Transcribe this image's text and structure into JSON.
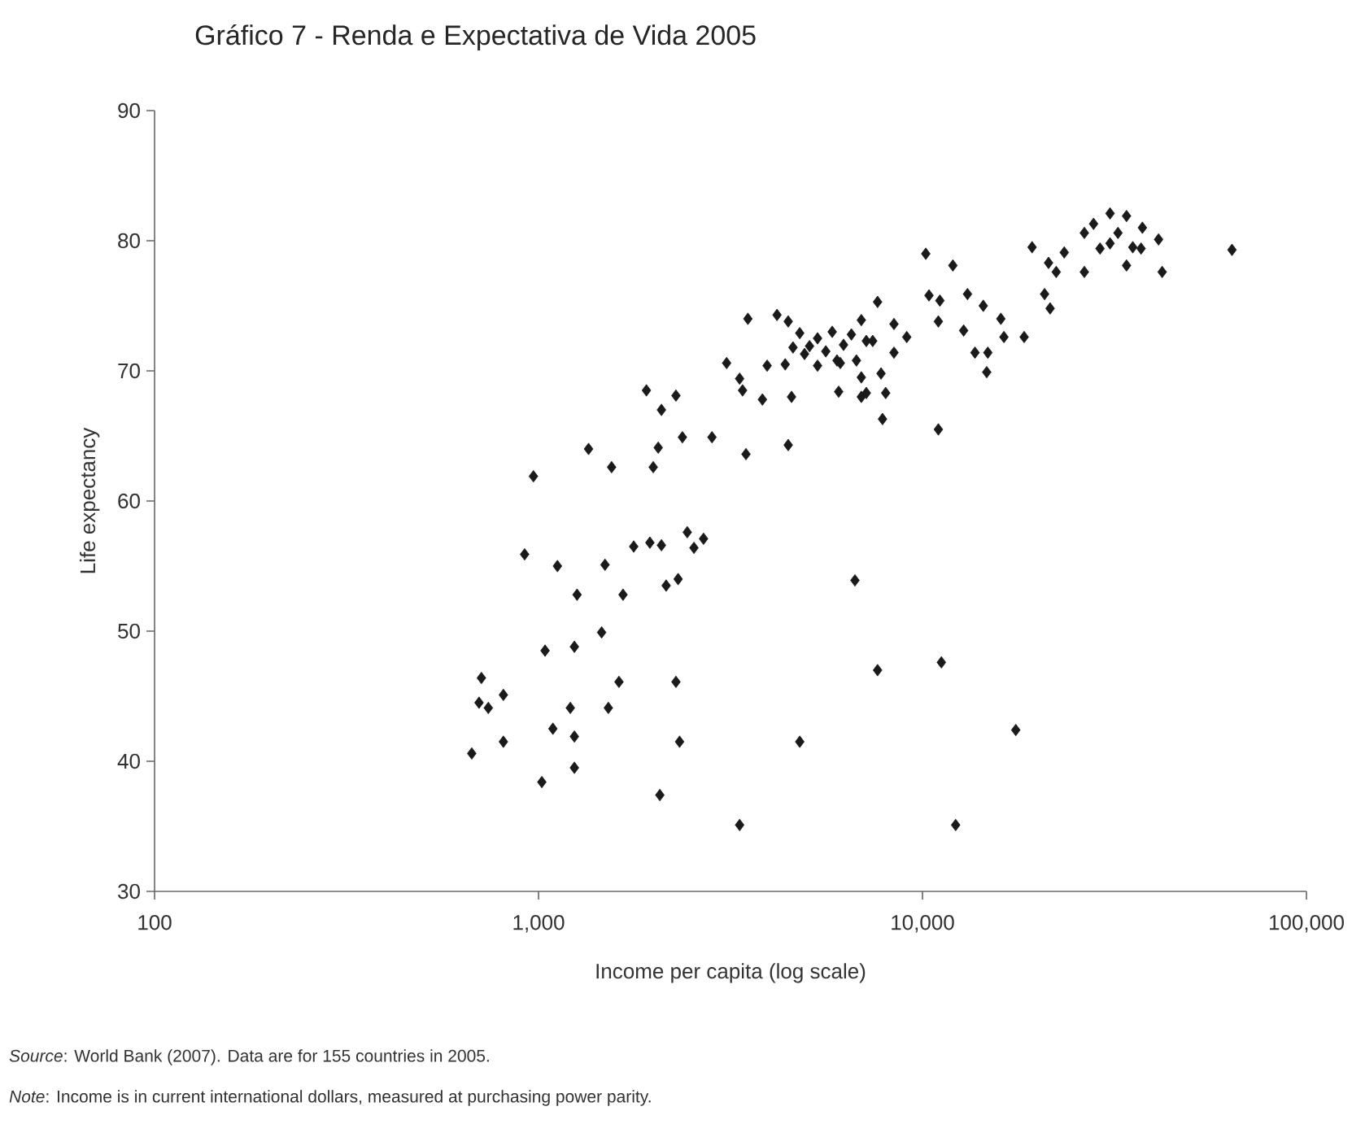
{
  "chart_data": {
    "type": "scatter",
    "title": "Gráfico 7 - Renda e Expectativa de Vida 2005",
    "xlabel": "Income per capita (log scale)",
    "ylabel": "Life expectancy",
    "annotations": [
      "*Source*: World Bank (2007). Data are for 155 countries in 2005.",
      "*Note*: Income is in current international dollars, measured at purchasing power parity."
    ],
    "log": "x",
    "xlim": [
      100,
      100000
    ],
    "ylim": [
      30,
      90
    ],
    "xticks": [
      100,
      {
        "value": 1000,
        "label": "1,000"
      },
      {
        "value": 10000,
        "label": "10,000"
      },
      {
        "value": 100000,
        "label": "100,000"
      }
    ],
    "yticks": [
      30,
      40,
      50,
      60,
      70,
      80,
      90
    ],
    "grid": false,
    "marker": "diamond",
    "series": [
      {
        "color": "#1a1a1a",
        "x": [
          1910,
          2280,
          2090,
          1350,
          1550,
          970,
          2050,
          1990,
          2370,
          2830,
          3470,
          4470,
          3090,
          3340,
          3400,
          3830,
          4560,
          3940,
          4390,
          6050,
          6930,
          6110,
          920,
          1120,
          1490,
          1770,
          1950,
          2090,
          2440,
          2690,
          2540,
          2150,
          2310,
          1260,
          1660,
          6670,
          1040,
          1240,
          1460,
          710,
          700,
          810,
          740,
          1210,
          1620,
          2280,
          1520,
          1090,
          1240,
          810,
          670,
          2330,
          4790,
          1240,
          1020,
          2070,
          7640,
          11200,
          17500,
          12200,
          3340,
          10200,
          12000,
          7640,
          6930,
          8430,
          9100,
          7140,
          8430,
          7800,
          7140,
          8020,
          7870,
          11000,
          10400,
          11100,
          13100,
          14400,
          11000,
          12800,
          16000,
          16300,
          18400,
          13700,
          14800,
          14700,
          19300,
          21300,
          22300,
          20800,
          21500,
          23400,
          26400,
          26400,
          30800,
          30800,
          34000,
          34000,
          37400,
          41200,
          42100,
          32300,
          35300,
          29000,
          64000,
          27900,
          37100,
          3510,
          4180,
          4470,
          4790,
          5080,
          5330,
          5600,
          5820,
          6230,
          6530,
          6730,
          6930,
          7420,
          5990,
          5330,
          4930,
          4600
        ],
        "values": [
          68.5,
          68.1,
          67,
          64,
          62.6,
          61.9,
          64.1,
          62.6,
          64.9,
          64.9,
          63.6,
          64.3,
          70.6,
          69.4,
          68.5,
          67.8,
          68,
          70.4,
          70.5,
          68.4,
          68,
          70.6,
          55.9,
          55,
          55.1,
          56.5,
          56.8,
          56.6,
          57.6,
          57.1,
          56.4,
          53.5,
          54,
          52.8,
          52.8,
          53.9,
          48.5,
          48.8,
          49.9,
          46.4,
          44.5,
          45.1,
          44.1,
          44.1,
          46.1,
          46.1,
          44.1,
          42.5,
          41.9,
          41.5,
          40.6,
          41.5,
          41.5,
          39.5,
          38.4,
          37.4,
          47,
          47.6,
          42.4,
          35.1,
          35.1,
          79,
          78.1,
          75.3,
          73.9,
          73.6,
          72.6,
          72.3,
          71.4,
          69.8,
          68.3,
          68.3,
          66.3,
          65.5,
          75.8,
          75.4,
          75.9,
          75,
          73.8,
          73.1,
          74,
          72.6,
          72.6,
          71.4,
          71.4,
          69.9,
          79.5,
          78.3,
          77.6,
          75.9,
          74.8,
          79.1,
          80.6,
          77.6,
          82.1,
          79.8,
          81.9,
          78.1,
          81,
          80.1,
          77.6,
          80.6,
          79.5,
          79.4,
          79.3,
          81.3,
          79.4,
          74,
          74.3,
          73.8,
          72.9,
          71.9,
          72.5,
          71.5,
          73,
          72,
          72.8,
          70.8,
          69.5,
          72.3,
          70.8,
          70.4,
          71.3,
          71.8
        ]
      }
    ]
  }
}
